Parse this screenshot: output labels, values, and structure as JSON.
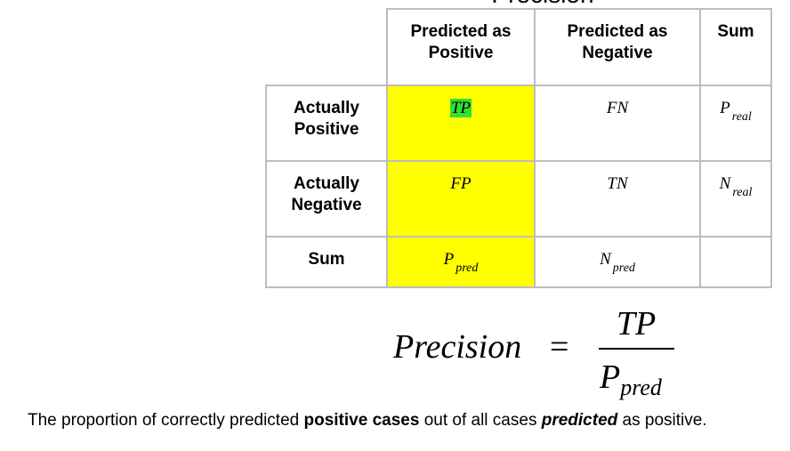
{
  "title": "Precision",
  "table": {
    "col_headers": [
      "Predicted as Positive",
      "Predicted as Negative",
      "Sum"
    ],
    "col_header_lines": [
      [
        "Predicted as",
        "Positive"
      ],
      [
        "Predicted as",
        "Negative"
      ],
      [
        "Sum"
      ]
    ],
    "rows": [
      {
        "header_lines": [
          "Actually",
          "Positive"
        ],
        "cells": [
          {
            "main": "TP",
            "sub": ""
          },
          {
            "main": "FN",
            "sub": ""
          },
          {
            "main": "P",
            "sub": "real"
          }
        ]
      },
      {
        "header_lines": [
          "Actually",
          "Negative"
        ],
        "cells": [
          {
            "main": "FP",
            "sub": ""
          },
          {
            "main": "TN",
            "sub": ""
          },
          {
            "main": "N",
            "sub": "real"
          }
        ]
      },
      {
        "header_lines": [
          "Sum"
        ],
        "cells": [
          {
            "main": "P",
            "sub": "pred"
          },
          {
            "main": "N",
            "sub": "pred"
          },
          {
            "main": "",
            "sub": ""
          }
        ]
      }
    ],
    "highlight_color": "#ffff00",
    "tp_highlight_color": "#33e033",
    "border_color": "#bdbdbd"
  },
  "formula": {
    "lhs": "Precision",
    "equals": "=",
    "numerator": "TP",
    "denominator_main": "P",
    "denominator_sub": "pred"
  },
  "caption": {
    "part1": "The proportion of correctly predicted ",
    "bold": "positive cases",
    "part2": " out of all cases ",
    "bold_italic": "predicted",
    "part3": " as positive."
  }
}
